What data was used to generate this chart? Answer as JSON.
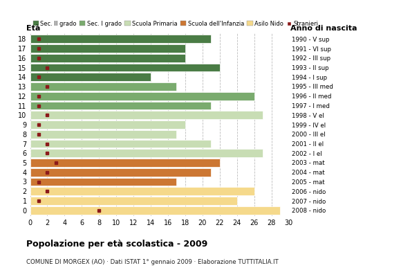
{
  "ages": [
    18,
    17,
    16,
    15,
    14,
    13,
    12,
    11,
    10,
    9,
    8,
    7,
    6,
    5,
    4,
    3,
    2,
    1,
    0
  ],
  "years": [
    "1990 - V sup",
    "1991 - VI sup",
    "1992 - III sup",
    "1993 - II sup",
    "1994 - I sup",
    "1995 - III med",
    "1996 - II med",
    "1997 - I med",
    "1998 - V el",
    "1999 - IV el",
    "2000 - III el",
    "2001 - II el",
    "2002 - I el",
    "2003 - mat",
    "2004 - mat",
    "2005 - mat",
    "2006 - nido",
    "2007 - nido",
    "2008 - nido"
  ],
  "values": [
    21,
    18,
    18,
    22,
    14,
    17,
    26,
    21,
    27,
    18,
    17,
    21,
    27,
    22,
    21,
    17,
    26,
    24,
    29
  ],
  "stranieri": [
    1,
    1,
    1,
    2,
    1,
    2,
    1,
    1,
    2,
    1,
    1,
    2,
    2,
    3,
    2,
    1,
    2,
    1,
    8
  ],
  "colors": {
    "sec_II": "#4a7c45",
    "sec_I": "#7aab6e",
    "primaria": "#c8ddb4",
    "infanzia": "#cc7733",
    "nido": "#f5d98b",
    "stranieri": "#8b1a1a"
  },
  "category_by_age": {
    "18": "sec_II",
    "17": "sec_II",
    "16": "sec_II",
    "15": "sec_II",
    "14": "sec_II",
    "13": "sec_I",
    "12": "sec_I",
    "11": "sec_I",
    "10": "primaria",
    "9": "primaria",
    "8": "primaria",
    "7": "primaria",
    "6": "primaria",
    "5": "infanzia",
    "4": "infanzia",
    "3": "infanzia",
    "2": "nido",
    "1": "nido",
    "0": "nido"
  },
  "title": "Popolazione per età scolastica - 2009",
  "subtitle": "COMUNE DI MORGEX (AO) · Dati ISTAT 1° gennaio 2009 · Elaborazione TUTTITALIA.IT",
  "xlim": [
    0,
    30
  ],
  "xticks": [
    0,
    2,
    4,
    6,
    8,
    10,
    12,
    14,
    16,
    18,
    20,
    22,
    24,
    26,
    28,
    30
  ],
  "legend_labels": [
    "Sec. II grado",
    "Sec. I grado",
    "Scuola Primaria",
    "Scuola dell'Infanzia",
    "Asilo Nido",
    "Stranieri"
  ],
  "legend_colors": [
    "#4a7c45",
    "#7aab6e",
    "#c8ddb4",
    "#cc7733",
    "#f5d98b",
    "#8b1a1a"
  ],
  "eta_label": "Età",
  "anno_label": "Anno di nascita",
  "background_color": "#ffffff"
}
